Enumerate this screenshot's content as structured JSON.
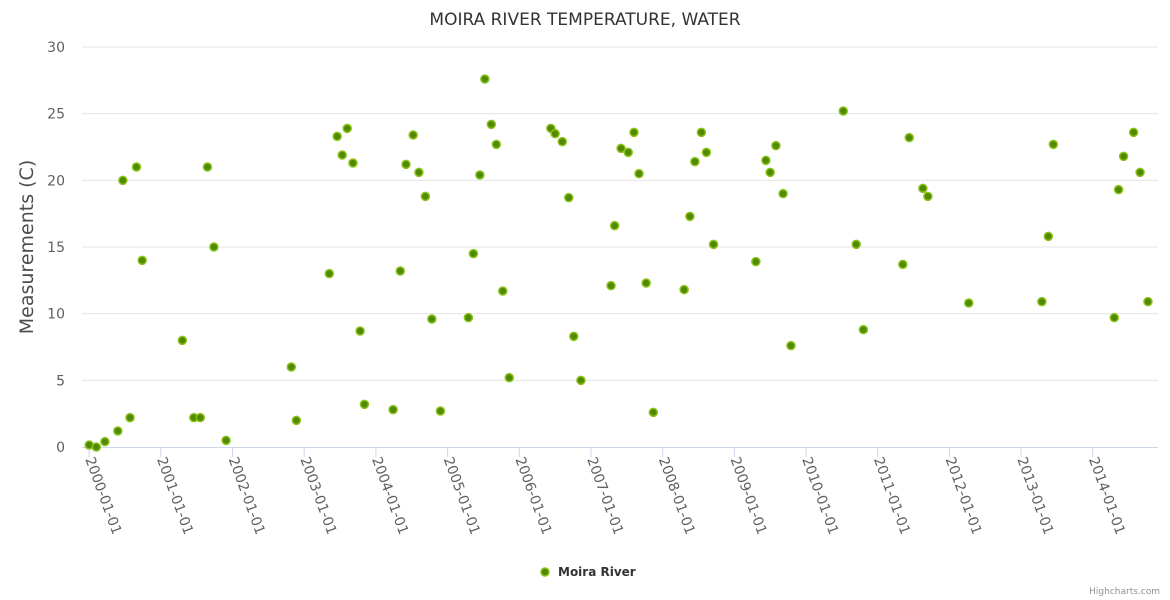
{
  "chart_data": {
    "type": "scatter",
    "title": "MOIRA RIVER TEMPERATURE, WATER",
    "xlabel": "",
    "ylabel": "Measurements (C)",
    "ylim": [
      0,
      30
    ],
    "xlim": [
      1999.9,
      2014.91
    ],
    "yticks": [
      0,
      5,
      10,
      15,
      20,
      25,
      30
    ],
    "xticks": [
      {
        "value": 2000,
        "label": "2000-01-01"
      },
      {
        "value": 2001,
        "label": "2001-01-01"
      },
      {
        "value": 2002,
        "label": "2002-01-01"
      },
      {
        "value": 2003,
        "label": "2003-01-01"
      },
      {
        "value": 2004,
        "label": "2004-01-01"
      },
      {
        "value": 2005,
        "label": "2005-01-01"
      },
      {
        "value": 2006,
        "label": "2006-01-01"
      },
      {
        "value": 2007,
        "label": "2007-01-01"
      },
      {
        "value": 2008,
        "label": "2008-01-01"
      },
      {
        "value": 2009,
        "label": "2009-01-01"
      },
      {
        "value": 2010,
        "label": "2010-01-01"
      },
      {
        "value": 2011,
        "label": "2011-01-01"
      },
      {
        "value": 2012,
        "label": "2012-01-01"
      },
      {
        "value": 2013,
        "label": "2013-01-01"
      },
      {
        "value": 2014,
        "label": "2014-01-01"
      }
    ],
    "grid": true,
    "legend_position": "bottom-center",
    "series": [
      {
        "name": "Moira River",
        "color": "#66a000",
        "points": [
          [
            2000.0,
            0.15
          ],
          [
            2000.1,
            0.0
          ],
          [
            2000.22,
            0.4
          ],
          [
            2000.4,
            1.2
          ],
          [
            2000.47,
            20.0
          ],
          [
            2000.57,
            2.2
          ],
          [
            2000.66,
            21.0
          ],
          [
            2000.74,
            14.0
          ],
          [
            2001.3,
            8.0
          ],
          [
            2001.46,
            2.2
          ],
          [
            2001.55,
            2.2
          ],
          [
            2001.65,
            21.0
          ],
          [
            2001.74,
            15.0
          ],
          [
            2001.91,
            0.5
          ],
          [
            2002.82,
            6.0
          ],
          [
            2002.89,
            2.0
          ],
          [
            2003.35,
            13.0
          ],
          [
            2003.46,
            23.3
          ],
          [
            2003.53,
            21.9
          ],
          [
            2003.6,
            23.9
          ],
          [
            2003.68,
            21.3
          ],
          [
            2003.78,
            8.7
          ],
          [
            2003.84,
            3.2
          ],
          [
            2004.24,
            2.8
          ],
          [
            2004.34,
            13.2
          ],
          [
            2004.42,
            21.2
          ],
          [
            2004.52,
            23.4
          ],
          [
            2004.6,
            20.6
          ],
          [
            2004.69,
            18.8
          ],
          [
            2004.78,
            9.6
          ],
          [
            2004.9,
            2.7
          ],
          [
            2005.29,
            9.7
          ],
          [
            2005.36,
            14.5
          ],
          [
            2005.45,
            20.4
          ],
          [
            2005.52,
            27.6
          ],
          [
            2005.61,
            24.2
          ],
          [
            2005.68,
            22.7
          ],
          [
            2005.77,
            11.7
          ],
          [
            2005.86,
            5.2
          ],
          [
            2006.44,
            23.9
          ],
          [
            2006.5,
            23.5
          ],
          [
            2006.6,
            22.9
          ],
          [
            2006.69,
            18.7
          ],
          [
            2006.76,
            8.3
          ],
          [
            2006.86,
            5.0
          ],
          [
            2007.28,
            12.1
          ],
          [
            2007.33,
            16.6
          ],
          [
            2007.42,
            22.4
          ],
          [
            2007.52,
            22.1
          ],
          [
            2007.6,
            23.6
          ],
          [
            2007.67,
            20.5
          ],
          [
            2007.77,
            12.3
          ],
          [
            2007.87,
            2.6
          ],
          [
            2008.3,
            11.8
          ],
          [
            2008.38,
            17.3
          ],
          [
            2008.45,
            21.4
          ],
          [
            2008.54,
            23.6
          ],
          [
            2008.61,
            22.1
          ],
          [
            2008.71,
            15.2
          ],
          [
            2009.3,
            13.9
          ],
          [
            2009.44,
            21.5
          ],
          [
            2009.5,
            20.6
          ],
          [
            2009.58,
            22.6
          ],
          [
            2009.68,
            19.0
          ],
          [
            2009.79,
            7.6
          ],
          [
            2010.52,
            25.2
          ],
          [
            2010.7,
            15.2
          ],
          [
            2010.8,
            8.8
          ],
          [
            2011.35,
            13.7
          ],
          [
            2011.44,
            23.2
          ],
          [
            2011.63,
            19.4
          ],
          [
            2011.7,
            18.8
          ],
          [
            2012.27,
            10.8
          ],
          [
            2013.29,
            10.9
          ],
          [
            2013.38,
            15.8
          ],
          [
            2013.45,
            22.7
          ],
          [
            2014.3,
            9.7
          ],
          [
            2014.36,
            19.3
          ],
          [
            2014.43,
            21.8
          ],
          [
            2014.57,
            23.6
          ],
          [
            2014.66,
            20.6
          ],
          [
            2014.77,
            10.9
          ]
        ]
      }
    ]
  },
  "credit": "Highcharts.com"
}
